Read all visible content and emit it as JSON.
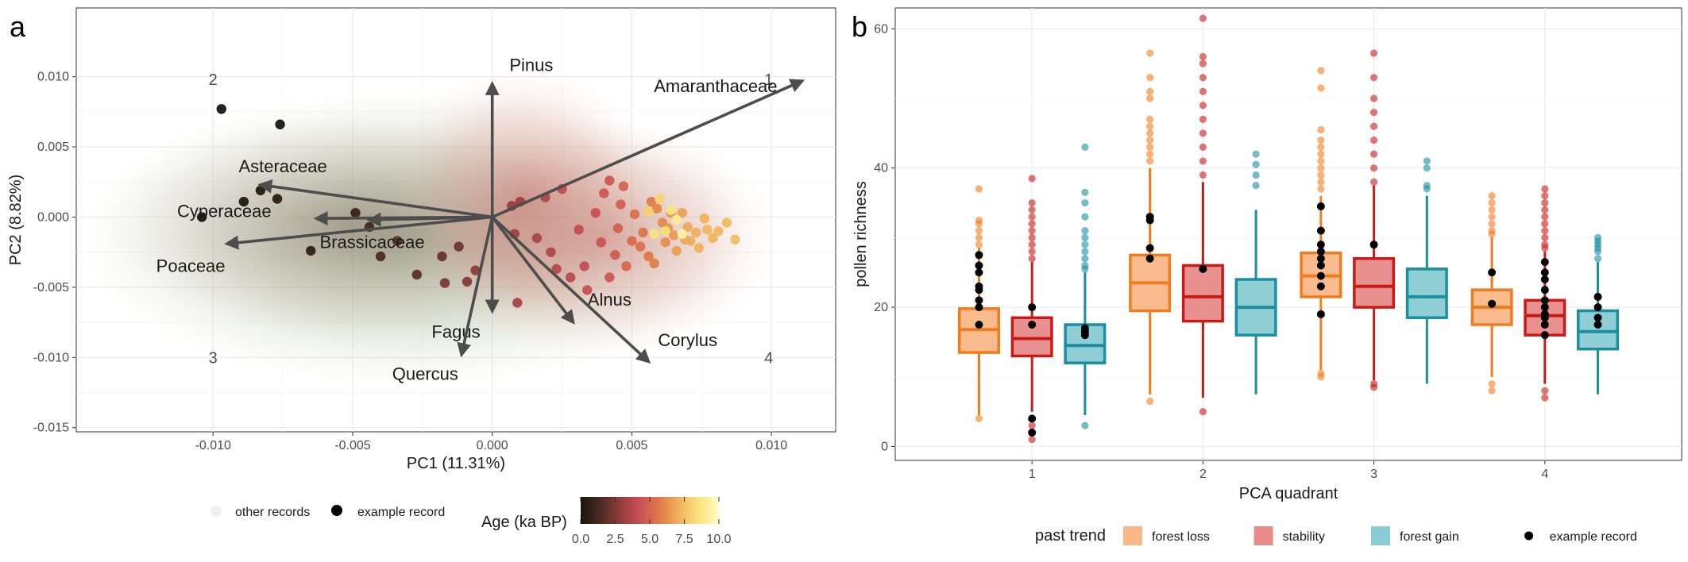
{
  "panels": {
    "a": "a",
    "b": "b"
  },
  "chart_data": [
    {
      "type": "scatter",
      "panel": "a",
      "xlabel": "PC1 (11.31%)",
      "ylabel": "PC2 (8.82%)",
      "xlim": [
        -0.0149,
        0.0123
      ],
      "ylim": [
        -0.0153,
        0.0149
      ],
      "x_ticks": [
        -0.01,
        -0.005,
        0.0,
        0.005,
        0.01
      ],
      "x_tick_labels": [
        "-0.010",
        "-0.005",
        "0.000",
        "0.005",
        "0.010"
      ],
      "y_ticks": [
        -0.015,
        -0.01,
        -0.005,
        0.0,
        0.005,
        0.01
      ],
      "y_tick_labels": [
        "-0.015",
        "-0.010",
        "-0.005",
        "0.000",
        "0.005",
        "0.010"
      ],
      "grid": true,
      "quadrant_labels": [
        {
          "text": "1",
          "x": 0.0099,
          "y": 0.0098
        },
        {
          "text": "2",
          "x": -0.01,
          "y": 0.0098
        },
        {
          "text": "3",
          "x": -0.01,
          "y": -0.01
        },
        {
          "text": "4",
          "x": 0.0099,
          "y": -0.01
        }
      ],
      "loadings": [
        {
          "name": "Pinus",
          "x": 0.0,
          "y": 0.0095,
          "lx": 0.0014,
          "ly": 0.0108
        },
        {
          "name": "Amaranthaceae",
          "x": 0.0111,
          "y": 0.0097,
          "lx": 0.008,
          "ly": 0.0093
        },
        {
          "name": "Asteraceae",
          "x": -0.0083,
          "y": 0.0023,
          "lx": -0.0075,
          "ly": 0.0036
        },
        {
          "name": "Cyperaceae",
          "x": -0.0063,
          "y": -0.0001,
          "lx": -0.0096,
          "ly": 0.0004
        },
        {
          "name": "Brassicaceae",
          "x": -0.0044,
          "y": -0.0002,
          "lx": -0.0043,
          "ly": -0.0018
        },
        {
          "name": "Poaceae",
          "x": -0.0095,
          "y": -0.0019,
          "lx": -0.0108,
          "ly": -0.0035
        },
        {
          "name": "Fagus",
          "x": 0.0,
          "y": -0.0067,
          "lx": -0.0013,
          "ly": -0.0082
        },
        {
          "name": "Quercus",
          "x": -0.0011,
          "y": -0.0098,
          "lx": -0.0024,
          "ly": -0.0112
        },
        {
          "name": "Alnus",
          "x": 0.0029,
          "y": -0.0075,
          "lx": 0.0042,
          "ly": -0.0059
        },
        {
          "name": "Corylus",
          "x": 0.0056,
          "y": -0.0103,
          "lx": 0.007,
          "ly": -0.0088
        }
      ],
      "example_records": [
        {
          "x": -0.0097,
          "y": 0.0077,
          "age": 0.1
        },
        {
          "x": -0.0076,
          "y": 0.0066,
          "age": 0.1
        },
        {
          "x": -0.0089,
          "y": 0.0011,
          "age": 0.2
        },
        {
          "x": -0.0104,
          "y": 0.0,
          "age": 0.1
        },
        {
          "x": -0.0083,
          "y": 0.0019,
          "age": 0.3
        },
        {
          "x": -0.0077,
          "y": 0.0013,
          "age": 0.5
        },
        {
          "x": -0.0065,
          "y": -0.0024,
          "age": 0.7
        },
        {
          "x": -0.0049,
          "y": 0.0003,
          "age": 0.9
        },
        {
          "x": -0.0044,
          "y": -0.0007,
          "age": 1.2
        },
        {
          "x": -0.004,
          "y": -0.0028,
          "age": 1.4
        },
        {
          "x": -0.0034,
          "y": -0.0017,
          "age": 1.6
        },
        {
          "x": -0.0027,
          "y": -0.0041,
          "age": 1.8
        },
        {
          "x": -0.0018,
          "y": -0.0028,
          "age": 2.0
        },
        {
          "x": -0.0012,
          "y": -0.0021,
          "age": 2.2
        },
        {
          "x": -0.0017,
          "y": -0.0047,
          "age": 2.4
        },
        {
          "x": -0.0009,
          "y": -0.0046,
          "age": 2.6
        },
        {
          "x": -0.0006,
          "y": -0.0038,
          "age": 2.8
        },
        {
          "x": 0.0007,
          "y": 0.0008,
          "age": 3.0
        },
        {
          "x": 0.001,
          "y": 0.0011,
          "age": 3.1
        },
        {
          "x": 0.0008,
          "y": -0.0012,
          "age": 3.3
        },
        {
          "x": 0.0009,
          "y": -0.0061,
          "age": 3.4
        },
        {
          "x": 0.0016,
          "y": -0.0015,
          "age": 3.5
        },
        {
          "x": 0.0019,
          "y": 0.0014,
          "age": 3.6
        },
        {
          "x": 0.0021,
          "y": -0.0025,
          "age": 3.7
        },
        {
          "x": 0.0023,
          "y": -0.0037,
          "age": 3.8
        },
        {
          "x": 0.0028,
          "y": -0.0043,
          "age": 3.9
        },
        {
          "x": 0.0025,
          "y": 0.002,
          "age": 4.0
        },
        {
          "x": 0.0031,
          "y": -0.0009,
          "age": 4.1
        },
        {
          "x": 0.0033,
          "y": -0.0035,
          "age": 4.2
        },
        {
          "x": 0.0034,
          "y": -0.0052,
          "age": 4.3
        },
        {
          "x": 0.0037,
          "y": 0.0003,
          "age": 4.3
        },
        {
          "x": 0.0039,
          "y": -0.0018,
          "age": 4.4
        },
        {
          "x": 0.004,
          "y": 0.0017,
          "age": 4.5
        },
        {
          "x": 0.0042,
          "y": 0.0026,
          "age": 4.5
        },
        {
          "x": 0.0042,
          "y": -0.0043,
          "age": 4.6
        },
        {
          "x": 0.0044,
          "y": -0.0027,
          "age": 4.7
        },
        {
          "x": 0.0046,
          "y": 0.0009,
          "age": 4.8
        },
        {
          "x": 0.0045,
          "y": -0.0008,
          "age": 4.9
        },
        {
          "x": 0.0047,
          "y": 0.0022,
          "age": 5.0
        },
        {
          "x": 0.0048,
          "y": -0.0035,
          "age": 5.1
        },
        {
          "x": 0.005,
          "y": -0.0017,
          "age": 5.2
        },
        {
          "x": 0.0051,
          "y": 0.0002,
          "age": 5.3
        },
        {
          "x": 0.0053,
          "y": -0.0021,
          "age": 5.4
        },
        {
          "x": 0.0054,
          "y": -0.0011,
          "age": 5.5
        },
        {
          "x": 0.0056,
          "y": -0.0028,
          "age": 5.6
        },
        {
          "x": 0.0057,
          "y": 0.0011,
          "age": 5.7
        },
        {
          "x": 0.0058,
          "y": -0.0033,
          "age": 5.8
        },
        {
          "x": 0.0059,
          "y": 0.0006,
          "age": 6.0
        },
        {
          "x": 0.0061,
          "y": -0.0004,
          "age": 6.1
        },
        {
          "x": 0.0062,
          "y": -0.0018,
          "age": 6.2
        },
        {
          "x": 0.0064,
          "y": 0.0003,
          "age": 6.3
        },
        {
          "x": 0.0063,
          "y": -0.0008,
          "age": 6.4
        },
        {
          "x": 0.0065,
          "y": -0.0013,
          "age": 6.5
        },
        {
          "x": 0.0066,
          "y": -0.0024,
          "age": 6.6
        },
        {
          "x": 0.0068,
          "y": 0.0003,
          "age": 6.7
        },
        {
          "x": 0.0069,
          "y": -0.0016,
          "age": 6.8
        },
        {
          "x": 0.007,
          "y": -0.0007,
          "age": 6.9
        },
        {
          "x": 0.0071,
          "y": -0.0017,
          "age": 7.0
        },
        {
          "x": 0.0073,
          "y": -0.0011,
          "age": 7.0
        },
        {
          "x": 0.0074,
          "y": -0.0022,
          "age": 7.1
        },
        {
          "x": 0.0076,
          "y": -0.0001,
          "age": 7.1
        },
        {
          "x": 0.0077,
          "y": -0.0009,
          "age": 7.2
        },
        {
          "x": 0.0079,
          "y": -0.0015,
          "age": 7.2
        },
        {
          "x": 0.0081,
          "y": -0.001,
          "age": 7.3
        },
        {
          "x": 0.0084,
          "y": -0.0004,
          "age": 7.3
        },
        {
          "x": 0.0087,
          "y": -0.0016,
          "age": 7.4
        },
        {
          "x": 0.006,
          "y": 0.0013,
          "age": 8.1
        },
        {
          "x": 0.0062,
          "y": -0.001,
          "age": 8.4
        },
        {
          "x": 0.0064,
          "y": 0.0005,
          "age": 8.7
        },
        {
          "x": 0.0066,
          "y": -0.0002,
          "age": 9.0
        },
        {
          "x": 0.0058,
          "y": -0.0012,
          "age": 8.6
        },
        {
          "x": 0.0068,
          "y": -0.0012,
          "age": 9.3
        },
        {
          "x": 0.0056,
          "y": 0.0004,
          "age": 8.0
        }
      ],
      "legend_items": {
        "other": "other records",
        "example": "example record"
      },
      "colorbar": {
        "title": "Age (ka BP)",
        "min": 0,
        "max": 10,
        "ticks": [
          0,
          2.5,
          5,
          7.5,
          10
        ],
        "tick_labels": [
          "0.0",
          "2.5",
          "5.0",
          "7.5",
          "10.0"
        ],
        "stops": [
          "#1b140c",
          "#4a2c22",
          "#8f3d3a",
          "#c85054",
          "#e07a4a",
          "#f0b45c",
          "#fbe47d",
          "#fffbc6"
        ]
      },
      "colors": {
        "arrow": "#4d4d4d",
        "cloud_green": "#8a9a72",
        "cloud_red": "#cf7670"
      }
    },
    {
      "type": "box",
      "panel": "b",
      "xlabel": "PCA quadrant",
      "ylabel": "pollen richness",
      "categories": [
        "1",
        "2",
        "3",
        "4"
      ],
      "ylim": [
        -2,
        63
      ],
      "y_ticks": [
        0,
        20,
        40,
        60
      ],
      "grid": true,
      "legend_title": "past trend",
      "series": [
        {
          "name": "forest loss",
          "color": "#f27b1d",
          "fill": "#f9b07a",
          "boxes": [
            {
              "q1": 13.5,
              "median": 16.8,
              "q3": 19.8,
              "low": 4.5,
              "high": 28.5,
              "outliers": [
                4.0,
                29.0,
                30.0,
                31.0,
                32.0,
                32.5,
                37.0
              ]
            },
            {
              "q1": 19.5,
              "median": 23.5,
              "q3": 27.5,
              "low": 7.5,
              "high": 40.0,
              "outliers": [
                6.5,
                41.0,
                42.0,
                43.0,
                44.0,
                45.0,
                46.0,
                47.0,
                50.0,
                51.0,
                53.0,
                56.5
              ]
            },
            {
              "q1": 21.5,
              "median": 24.5,
              "q3": 27.8,
              "low": 11.0,
              "high": 36.0,
              "outliers": [
                10.0,
                10.5,
                37.0,
                38.0,
                39.0,
                40.0,
                41.0,
                42.0,
                43.0,
                44.0,
                45.5,
                51.5,
                54.0
              ]
            },
            {
              "q1": 17.5,
              "median": 20.0,
              "q3": 22.5,
              "low": 10.0,
              "high": 30.0,
              "outliers": [
                8.0,
                9.0,
                30.5,
                31.0,
                32.0,
                33.0,
                34.0,
                35.0,
                36.0
              ]
            }
          ]
        },
        {
          "name": "stability",
          "color": "#c81b17",
          "fill": "#e57e7c",
          "boxes": [
            {
              "q1": 13.0,
              "median": 15.5,
              "q3": 18.5,
              "low": 5.0,
              "high": 26.5,
              "outliers": [
                1.0,
                2.0,
                3.0,
                4.0,
                27.0,
                28.0,
                29.0,
                30.0,
                31.0,
                32.0,
                33.0,
                34.0,
                35.0,
                38.5
              ]
            },
            {
              "q1": 18.0,
              "median": 21.5,
              "q3": 26.0,
              "low": 7.0,
              "high": 38.0,
              "outliers": [
                5.0,
                39.0,
                41.0,
                43.0,
                45.0,
                47.0,
                49.0,
                51.0,
                53.0,
                55.0,
                56.0,
                61.5
              ]
            },
            {
              "q1": 20.0,
              "median": 23.0,
              "q3": 27.0,
              "low": 9.5,
              "high": 37.5,
              "outliers": [
                8.5,
                9.0,
                38.0,
                40.0,
                42.0,
                44.0,
                46.0,
                48.0,
                50.0,
                53.0,
                56.5
              ]
            },
            {
              "q1": 16.0,
              "median": 18.8,
              "q3": 21.0,
              "low": 9.0,
              "high": 28.0,
              "outliers": [
                7.0,
                8.0,
                28.5,
                29.0,
                30.0,
                31.0,
                32.0,
                33.0,
                34.0,
                35.0,
                36.0,
                37.0
              ]
            }
          ]
        },
        {
          "name": "forest gain",
          "color": "#1a8fa0",
          "fill": "#7dc6cf",
          "boxes": [
            {
              "q1": 12.0,
              "median": 14.5,
              "q3": 17.5,
              "low": 4.5,
              "high": 25.0,
              "outliers": [
                3.0,
                25.5,
                26.0,
                27.0,
                28.0,
                29.0,
                30.0,
                31.0,
                33.0,
                35.0,
                36.5,
                43.0
              ]
            },
            {
              "q1": 16.0,
              "median": 20.0,
              "q3": 24.0,
              "low": 7.5,
              "high": 34.0,
              "outliers": [
                37.5,
                39.0,
                40.5,
                42.0
              ]
            },
            {
              "q1": 18.5,
              "median": 21.5,
              "q3": 25.5,
              "low": 9.0,
              "high": 36.0,
              "outliers": [
                37.0,
                37.5,
                40.0,
                41.0
              ]
            },
            {
              "q1": 14.0,
              "median": 16.5,
              "q3": 19.5,
              "low": 7.5,
              "high": 26.5,
              "outliers": [
                27.0,
                28.0,
                28.5,
                29.0,
                29.5,
                30.0
              ]
            }
          ]
        }
      ],
      "example_records": [
        {
          "quadrant": 1,
          "series": 0,
          "values": [
            17.5,
            20.0,
            21.0,
            22.5,
            23.0,
            25.0,
            26.0,
            27.5
          ]
        },
        {
          "quadrant": 1,
          "series": 1,
          "values": [
            2.0,
            4.0,
            17.5,
            20.0
          ]
        },
        {
          "quadrant": 1,
          "series": 2,
          "values": [
            16.0,
            16.5,
            17.0
          ]
        },
        {
          "quadrant": 2,
          "series": 0,
          "values": [
            27.0,
            28.5,
            32.5,
            33.0
          ]
        },
        {
          "quadrant": 2,
          "series": 1,
          "values": [
            25.5
          ]
        },
        {
          "quadrant": 3,
          "series": 0,
          "values": [
            19.0,
            23.0,
            24.5,
            26.0,
            27.0,
            28.0,
            29.0,
            31.0,
            34.5
          ]
        },
        {
          "quadrant": 3,
          "series": 1,
          "values": [
            29.0
          ]
        },
        {
          "quadrant": 4,
          "series": 0,
          "values": [
            20.5,
            25.0
          ]
        },
        {
          "quadrant": 4,
          "series": 1,
          "values": [
            16.0,
            17.5,
            18.5,
            19.0,
            20.0,
            21.0,
            22.5,
            24.0,
            25.0,
            26.5
          ]
        },
        {
          "quadrant": 4,
          "series": 2,
          "values": [
            17.5,
            18.5,
            20.0,
            21.5
          ]
        }
      ],
      "legend_extra": "example record"
    }
  ]
}
